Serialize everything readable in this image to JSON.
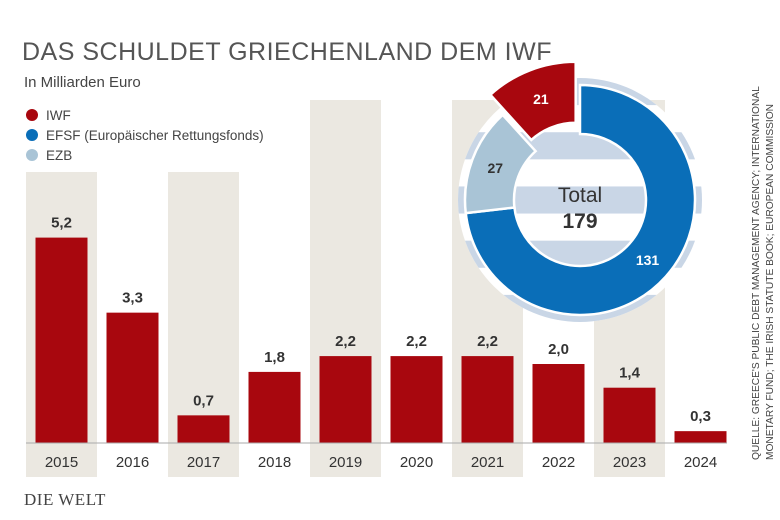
{
  "title": "DAS SCHULDET GRIECHENLAND DEM IWF",
  "subtitle": "In Milliarden Euro",
  "legend": [
    {
      "label": "IWF",
      "color": "#a8070e"
    },
    {
      "label": "EFSF (Europäischer Rettungsfonds)",
      "color": "#0a6eb8"
    },
    {
      "label": "EZB",
      "color": "#a9c4d6"
    }
  ],
  "source": [
    "QUELLE: GREECE'S PUBLIC DEBT MANAGEMENT AGENCY; INTERNATIONAL",
    "MONETARY FUND; THE IRISH STATUTE BOOK; EUROPEAN COMMISSION"
  ],
  "logo": "DIE WELT",
  "colors": {
    "bar": "#a8070e",
    "band": "#ebe8e1",
    "efsf": "#0a6eb8",
    "ezb": "#a9c4d6",
    "iwf": "#a8070e",
    "stripe": "#c9d6e6"
  },
  "chart_data": [
    {
      "type": "bar",
      "categories": [
        "2015",
        "2016",
        "2017",
        "2018",
        "2019",
        "2020",
        "2021",
        "2022",
        "2023",
        "2024"
      ],
      "values": [
        5.2,
        3.3,
        0.7,
        1.8,
        2.2,
        2.2,
        2.2,
        2.0,
        1.4,
        0.3
      ],
      "value_labels": [
        "5,2",
        "3,3",
        "0,7",
        "1,8",
        "2,2",
        "2,2",
        "2,2",
        "2,0",
        "1,4",
        "0,3"
      ],
      "xlabel": "",
      "ylabel": ""
    },
    {
      "type": "pie",
      "labels": [
        "EFSF (Europäischer Rettungsfonds)",
        "EZB",
        "IWF"
      ],
      "values": [
        131,
        27,
        21
      ],
      "total_label": "Total",
      "total_value": "179"
    }
  ]
}
